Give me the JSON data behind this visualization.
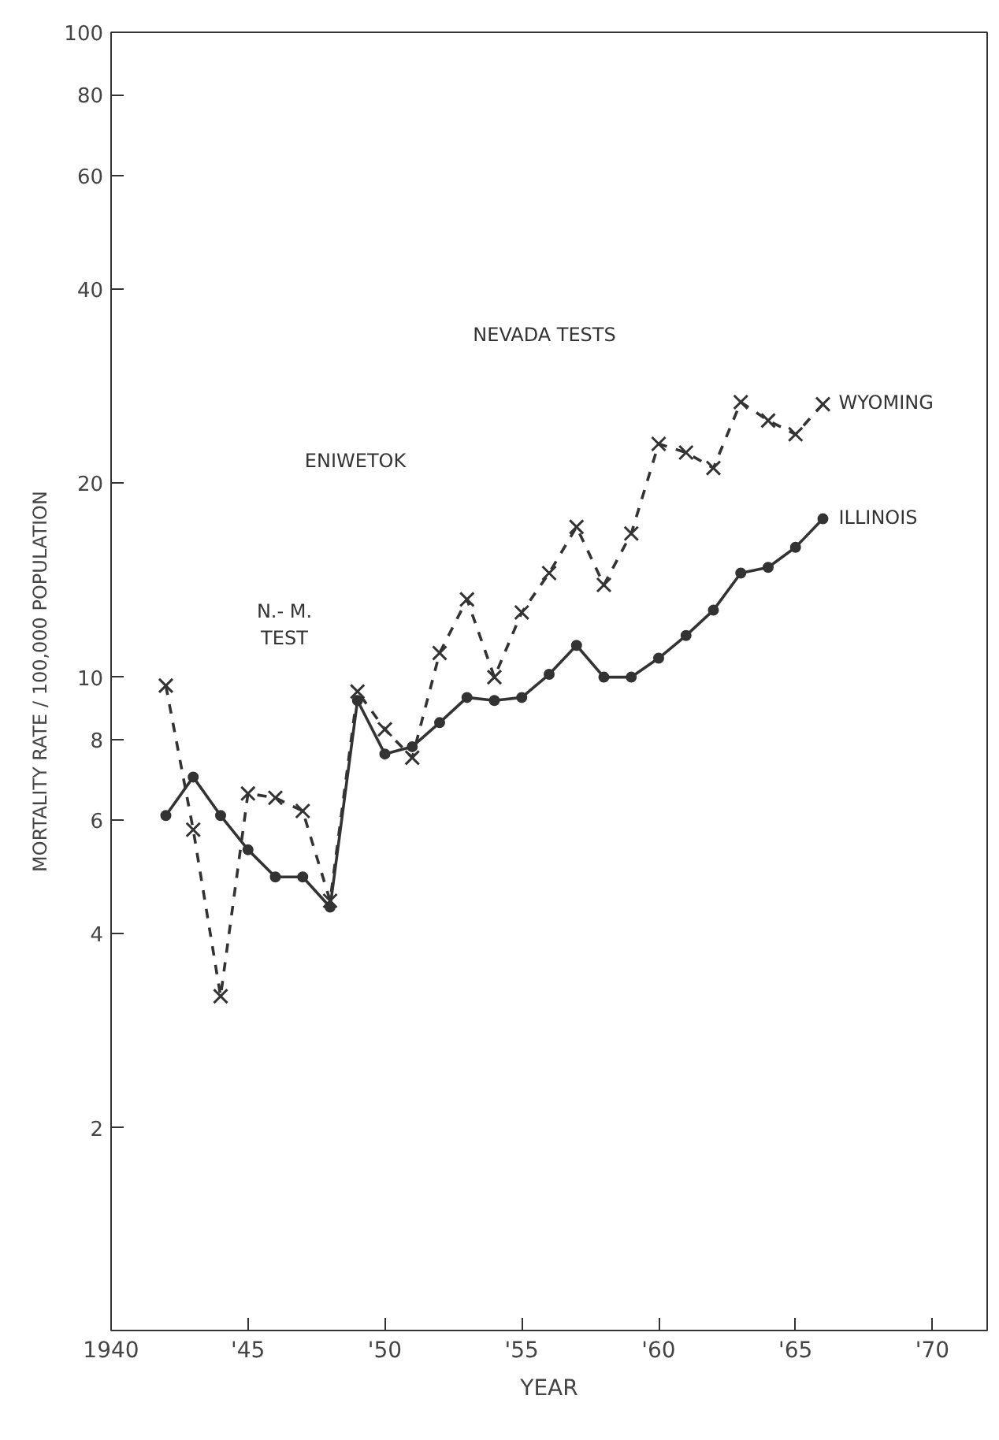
{
  "chart_data": {
    "type": "line",
    "xlabel": "YEAR",
    "ylabel": "MORTALITY RATE / 100,000 POPULATION",
    "x": [
      1942,
      1943,
      1944,
      1945,
      1946,
      1947,
      1948,
      1949,
      1950,
      1951,
      1952,
      1953,
      1954,
      1955,
      1956,
      1957,
      1958,
      1959,
      1960,
      1961,
      1962,
      1963,
      1964,
      1965,
      1966
    ],
    "series": [
      {
        "name": "WYOMING",
        "color": "#333333",
        "marker": "cross",
        "line_style": "dashed",
        "values": [
          9.7,
          5.8,
          3.2,
          6.6,
          6.5,
          6.2,
          4.5,
          9.5,
          8.3,
          7.5,
          10.9,
          13.2,
          10.0,
          12.6,
          14.5,
          17.1,
          13.9,
          16.7,
          23.0,
          22.3,
          21.1,
          26.7,
          25.0,
          23.8,
          26.5
        ]
      },
      {
        "name": "ILLINOIS",
        "color": "#333333",
        "marker": "circle",
        "line_style": "solid",
        "values": [
          6.1,
          7.0,
          6.1,
          5.4,
          4.9,
          4.9,
          4.4,
          9.2,
          7.6,
          7.8,
          8.5,
          9.3,
          9.2,
          9.3,
          10.1,
          11.2,
          10.0,
          10.0,
          10.7,
          11.6,
          12.7,
          14.5,
          14.8,
          15.9,
          17.6
        ]
      }
    ],
    "log": "y",
    "ylim": [
      0.97,
      100
    ],
    "yticks": [
      2,
      4,
      6,
      8,
      10,
      20,
      40,
      60,
      80,
      100
    ],
    "xlim": [
      1940,
      1972
    ],
    "xticks": [
      1940,
      {
        "value": 1945,
        "label": "'45"
      },
      {
        "value": 1950,
        "label": "'50"
      },
      {
        "value": 1955,
        "label": "'55"
      },
      {
        "value": 1960,
        "label": "'60"
      },
      {
        "value": 1965,
        "label": "'65"
      },
      {
        "value": 1970,
        "label": "'70"
      }
    ],
    "grid": false,
    "legend": false,
    "annotations": [
      "N.- M.\nTEST",
      "ENIWETOK",
      "NEVADA TESTS"
    ]
  }
}
